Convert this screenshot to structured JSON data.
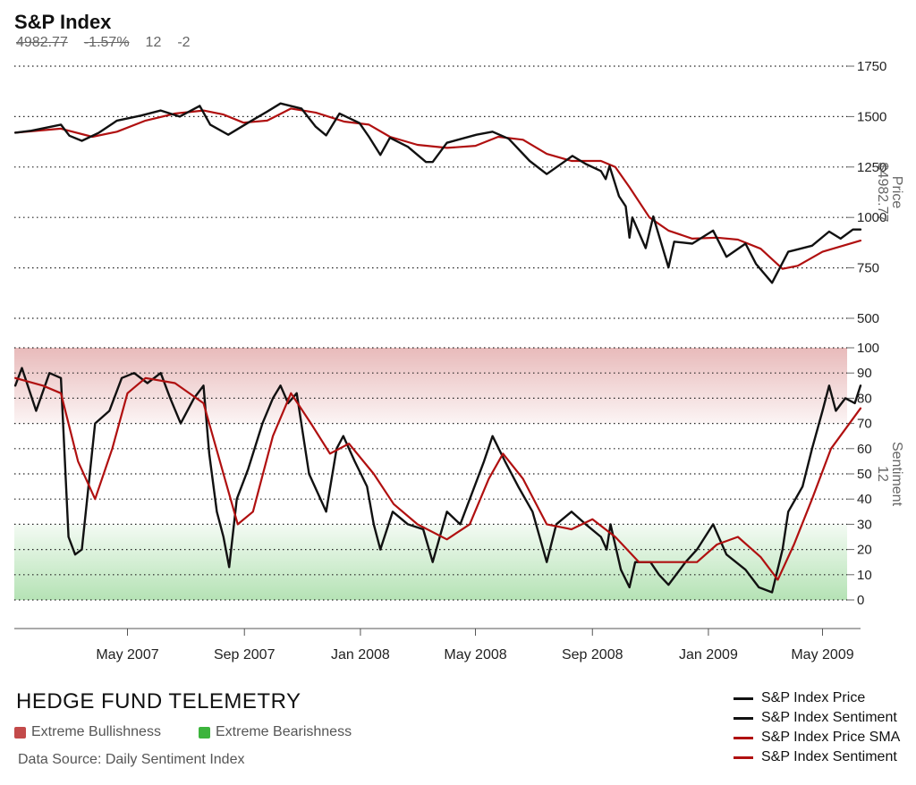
{
  "header": {
    "title": "S&P Index",
    "last_price": "4982.77",
    "change_pct": "-1.57%",
    "sentiment": "12",
    "sentiment_change": "-2"
  },
  "footer": {
    "brand": "HEDGE FUND TELEMETRY",
    "bull_label": "Extreme Bullishness",
    "bear_label": "Extreme Bearishness",
    "source": "Data Source: Daily Sentiment Index"
  },
  "legend": [
    {
      "label": "S&P Index Price",
      "color": "#111111"
    },
    {
      "label": "S&P Index Sentiment",
      "color": "#111111"
    },
    {
      "label": "S&P Index Price SMA",
      "color": "#b01010"
    },
    {
      "label": "S&P Index Sentiment",
      "color": "#b01010"
    }
  ],
  "colors": {
    "raw": "#111111",
    "sma": "#b01010",
    "bull_zone": "#c34a4a",
    "bear_zone": "#3cb43c"
  },
  "chart_data": [
    {
      "type": "line",
      "panel": "price",
      "ylabel": "Price",
      "ylabel_value": "$4982.77",
      "ylim": [
        500,
        1750
      ],
      "yticks": [
        500,
        750,
        1000,
        1250,
        1500,
        1750
      ],
      "xlim": [
        "2007-01-02",
        "2009-06-10"
      ],
      "x_ticks": [
        {
          "date": "2007-05-01",
          "label": "May 2007"
        },
        {
          "date": "2007-09-01",
          "label": "Sep 2007"
        },
        {
          "date": "2008-01-01",
          "label": "Jan 2008"
        },
        {
          "date": "2008-05-01",
          "label": "May 2008"
        },
        {
          "date": "2008-09-01",
          "label": "Sep 2008"
        },
        {
          "date": "2009-01-01",
          "label": "Jan 2009"
        },
        {
          "date": "2009-05-01",
          "label": "May 2009"
        }
      ],
      "series": [
        {
          "name": "S&P Index Price",
          "role": "raw",
          "points": [
            [
              "2007-01-03",
              1420
            ],
            [
              "2007-01-20",
              1430
            ],
            [
              "2007-02-20",
              1460
            ],
            [
              "2007-03-01",
              1405
            ],
            [
              "2007-03-14",
              1380
            ],
            [
              "2007-04-01",
              1420
            ],
            [
              "2007-04-20",
              1480
            ],
            [
              "2007-05-15",
              1505
            ],
            [
              "2007-06-05",
              1530
            ],
            [
              "2007-06-25",
              1500
            ],
            [
              "2007-07-16",
              1553
            ],
            [
              "2007-07-27",
              1460
            ],
            [
              "2007-08-15",
              1410
            ],
            [
              "2007-09-05",
              1470
            ],
            [
              "2007-09-25",
              1525
            ],
            [
              "2007-10-09",
              1565
            ],
            [
              "2007-10-31",
              1540
            ],
            [
              "2007-11-15",
              1450
            ],
            [
              "2007-11-26",
              1407
            ],
            [
              "2007-12-10",
              1515
            ],
            [
              "2007-12-31",
              1468
            ],
            [
              "2008-01-10",
              1400
            ],
            [
              "2008-01-22",
              1310
            ],
            [
              "2008-02-01",
              1395
            ],
            [
              "2008-02-20",
              1350
            ],
            [
              "2008-03-10",
              1275
            ],
            [
              "2008-03-17",
              1275
            ],
            [
              "2008-04-01",
              1370
            ],
            [
              "2008-05-02",
              1410
            ],
            [
              "2008-05-19",
              1425
            ],
            [
              "2008-06-05",
              1390
            ],
            [
              "2008-06-27",
              1280
            ],
            [
              "2008-07-15",
              1215
            ],
            [
              "2008-08-11",
              1305
            ],
            [
              "2008-08-25",
              1265
            ],
            [
              "2008-09-10",
              1230
            ],
            [
              "2008-09-15",
              1190
            ],
            [
              "2008-09-19",
              1255
            ],
            [
              "2008-09-29",
              1105
            ],
            [
              "2008-10-06",
              1055
            ],
            [
              "2008-10-10",
              900
            ],
            [
              "2008-10-13",
              1000
            ],
            [
              "2008-10-27",
              848
            ],
            [
              "2008-11-04",
              1005
            ],
            [
              "2008-11-20",
              752
            ],
            [
              "2008-11-26",
              880
            ],
            [
              "2008-12-15",
              870
            ],
            [
              "2009-01-06",
              935
            ],
            [
              "2009-01-20",
              805
            ],
            [
              "2009-02-09",
              870
            ],
            [
              "2009-02-20",
              770
            ],
            [
              "2009-03-09",
              676
            ],
            [
              "2009-03-26",
              830
            ],
            [
              "2009-04-20",
              860
            ],
            [
              "2009-05-08",
              930
            ],
            [
              "2009-05-20",
              895
            ],
            [
              "2009-06-02",
              940
            ],
            [
              "2009-06-10",
              940
            ]
          ]
        },
        {
          "name": "S&P Index Price SMA",
          "role": "sma",
          "points": [
            [
              "2007-01-03",
              1420
            ],
            [
              "2007-02-20",
              1440
            ],
            [
              "2007-03-25",
              1400
            ],
            [
              "2007-04-20",
              1425
            ],
            [
              "2007-05-20",
              1480
            ],
            [
              "2007-06-20",
              1515
            ],
            [
              "2007-07-20",
              1530
            ],
            [
              "2007-08-10",
              1510
            ],
            [
              "2007-08-31",
              1470
            ],
            [
              "2007-09-25",
              1480
            ],
            [
              "2007-10-20",
              1540
            ],
            [
              "2007-11-15",
              1520
            ],
            [
              "2007-12-15",
              1475
            ],
            [
              "2008-01-10",
              1460
            ],
            [
              "2008-02-01",
              1400
            ],
            [
              "2008-03-01",
              1360
            ],
            [
              "2008-04-01",
              1345
            ],
            [
              "2008-05-01",
              1355
            ],
            [
              "2008-05-25",
              1400
            ],
            [
              "2008-06-20",
              1385
            ],
            [
              "2008-07-15",
              1315
            ],
            [
              "2008-08-10",
              1280
            ],
            [
              "2008-09-10",
              1280
            ],
            [
              "2008-09-25",
              1250
            ],
            [
              "2008-10-10",
              1150
            ],
            [
              "2008-10-31",
              1000
            ],
            [
              "2008-11-20",
              935
            ],
            [
              "2008-12-15",
              895
            ],
            [
              "2009-01-10",
              900
            ],
            [
              "2009-02-01",
              890
            ],
            [
              "2009-02-25",
              845
            ],
            [
              "2009-03-20",
              745
            ],
            [
              "2009-04-05",
              760
            ],
            [
              "2009-05-01",
              830
            ],
            [
              "2009-06-10",
              885
            ]
          ]
        }
      ]
    },
    {
      "type": "line",
      "panel": "sentiment",
      "ylabel": "Sentiment",
      "ylabel_value": "12",
      "ylim": [
        0,
        100
      ],
      "yticks": [
        0,
        10,
        20,
        30,
        40,
        50,
        60,
        70,
        80,
        90,
        100
      ],
      "zones": [
        {
          "name": "Extreme Bullishness",
          "from": 70,
          "to": 100
        },
        {
          "name": "Extreme Bearishness",
          "from": 0,
          "to": 30
        }
      ],
      "xlim": [
        "2007-01-02",
        "2009-06-10"
      ],
      "series": [
        {
          "name": "S&P Index Sentiment",
          "role": "raw",
          "points": [
            [
              "2007-01-03",
              85
            ],
            [
              "2007-01-10",
              92
            ],
            [
              "2007-01-25",
              75
            ],
            [
              "2007-02-08",
              90
            ],
            [
              "2007-02-20",
              88
            ],
            [
              "2007-02-28",
              25
            ],
            [
              "2007-03-07",
              18
            ],
            [
              "2007-03-14",
              20
            ],
            [
              "2007-03-28",
              70
            ],
            [
              "2007-04-12",
              75
            ],
            [
              "2007-04-25",
              88
            ],
            [
              "2007-05-08",
              90
            ],
            [
              "2007-05-22",
              86
            ],
            [
              "2007-06-05",
              90
            ],
            [
              "2007-06-15",
              80
            ],
            [
              "2007-06-26",
              70
            ],
            [
              "2007-07-10",
              80
            ],
            [
              "2007-07-20",
              85
            ],
            [
              "2007-07-26",
              58
            ],
            [
              "2007-08-03",
              35
            ],
            [
              "2007-08-10",
              25
            ],
            [
              "2007-08-16",
              13
            ],
            [
              "2007-08-24",
              40
            ],
            [
              "2007-09-05",
              52
            ],
            [
              "2007-09-20",
              70
            ],
            [
              "2007-10-01",
              80
            ],
            [
              "2007-10-09",
              85
            ],
            [
              "2007-10-17",
              78
            ],
            [
              "2007-10-26",
              82
            ],
            [
              "2007-11-08",
              50
            ],
            [
              "2007-11-20",
              40
            ],
            [
              "2007-11-26",
              35
            ],
            [
              "2007-12-07",
              60
            ],
            [
              "2007-12-14",
              65
            ],
            [
              "2007-12-26",
              55
            ],
            [
              "2008-01-08",
              45
            ],
            [
              "2008-01-15",
              30
            ],
            [
              "2008-01-22",
              20
            ],
            [
              "2008-02-04",
              35
            ],
            [
              "2008-02-20",
              30
            ],
            [
              "2008-03-07",
              28
            ],
            [
              "2008-03-17",
              15
            ],
            [
              "2008-04-01",
              35
            ],
            [
              "2008-04-15",
              30
            ],
            [
              "2008-04-30",
              45
            ],
            [
              "2008-05-10",
              55
            ],
            [
              "2008-05-19",
              65
            ],
            [
              "2008-06-01",
              55
            ],
            [
              "2008-06-15",
              45
            ],
            [
              "2008-06-30",
              35
            ],
            [
              "2008-07-15",
              15
            ],
            [
              "2008-07-25",
              30
            ],
            [
              "2008-08-10",
              35
            ],
            [
              "2008-08-25",
              30
            ],
            [
              "2008-09-10",
              25
            ],
            [
              "2008-09-16",
              20
            ],
            [
              "2008-09-20",
              30
            ],
            [
              "2008-10-01",
              12
            ],
            [
              "2008-10-10",
              5
            ],
            [
              "2008-10-16",
              15
            ],
            [
              "2008-11-01",
              15
            ],
            [
              "2008-11-10",
              10
            ],
            [
              "2008-11-20",
              6
            ],
            [
              "2008-12-08",
              15
            ],
            [
              "2008-12-20",
              20
            ],
            [
              "2009-01-06",
              30
            ],
            [
              "2009-01-20",
              18
            ],
            [
              "2009-02-09",
              12
            ],
            [
              "2009-02-23",
              5
            ],
            [
              "2009-03-09",
              3
            ],
            [
              "2009-03-20",
              20
            ],
            [
              "2009-03-26",
              35
            ],
            [
              "2009-04-10",
              45
            ],
            [
              "2009-04-20",
              60
            ],
            [
              "2009-05-01",
              75
            ],
            [
              "2009-05-08",
              85
            ],
            [
              "2009-05-15",
              75
            ],
            [
              "2009-05-25",
              80
            ],
            [
              "2009-06-04",
              78
            ],
            [
              "2009-06-10",
              85
            ]
          ]
        },
        {
          "name": "S&P Index Sentiment",
          "role": "sma",
          "points": [
            [
              "2007-01-03",
              88
            ],
            [
              "2007-02-01",
              85
            ],
            [
              "2007-02-20",
              82
            ],
            [
              "2007-03-10",
              55
            ],
            [
              "2007-03-28",
              40
            ],
            [
              "2007-04-15",
              60
            ],
            [
              "2007-05-01",
              82
            ],
            [
              "2007-05-20",
              88
            ],
            [
              "2007-06-20",
              86
            ],
            [
              "2007-07-20",
              78
            ],
            [
              "2007-08-10",
              50
            ],
            [
              "2007-08-25",
              30
            ],
            [
              "2007-09-10",
              35
            ],
            [
              "2007-10-01",
              65
            ],
            [
              "2007-10-20",
              82
            ],
            [
              "2007-11-10",
              70
            ],
            [
              "2007-11-30",
              58
            ],
            [
              "2007-12-20",
              62
            ],
            [
              "2008-01-15",
              50
            ],
            [
              "2008-02-05",
              38
            ],
            [
              "2008-03-01",
              30
            ],
            [
              "2008-04-01",
              24
            ],
            [
              "2008-04-25",
              30
            ],
            [
              "2008-05-15",
              48
            ],
            [
              "2008-05-30",
              58
            ],
            [
              "2008-06-20",
              48
            ],
            [
              "2008-07-15",
              30
            ],
            [
              "2008-08-10",
              28
            ],
            [
              "2008-09-01",
              32
            ],
            [
              "2008-09-25",
              25
            ],
            [
              "2008-10-20",
              15
            ],
            [
              "2008-11-20",
              15
            ],
            [
              "2008-12-20",
              15
            ],
            [
              "2009-01-10",
              22
            ],
            [
              "2009-02-01",
              25
            ],
            [
              "2009-02-25",
              17
            ],
            [
              "2009-03-15",
              8
            ],
            [
              "2009-04-01",
              22
            ],
            [
              "2009-04-20",
              40
            ],
            [
              "2009-05-10",
              60
            ],
            [
              "2009-06-10",
              76
            ]
          ]
        }
      ]
    }
  ]
}
